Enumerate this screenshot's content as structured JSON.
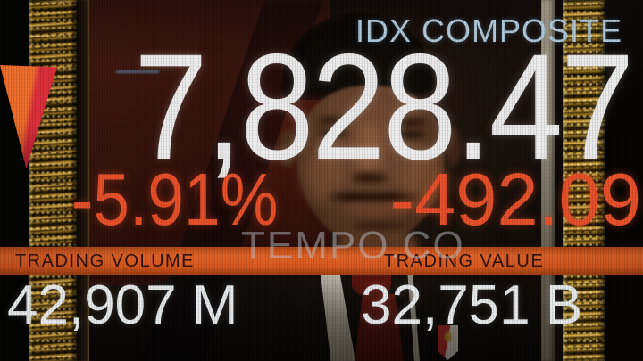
{
  "photo": {
    "watermark": "TEMPO.CO"
  },
  "display": {
    "index_name": "IDX COMPOSITE",
    "index_value": "7,828.47",
    "change_percent": "-5.91%",
    "change_points": "-492.09",
    "stats": [
      {
        "label": "TRADING VOLUME",
        "value": "42,907 M"
      },
      {
        "label": "TRADING VALUE",
        "value": "32,751 B"
      }
    ],
    "colors": {
      "decline_orange_red": "#e8502a",
      "stat_bar_orange": "#d8581f",
      "index_name_pale_blue": "#aec7d8",
      "value_white": "#e9ebec"
    }
  }
}
